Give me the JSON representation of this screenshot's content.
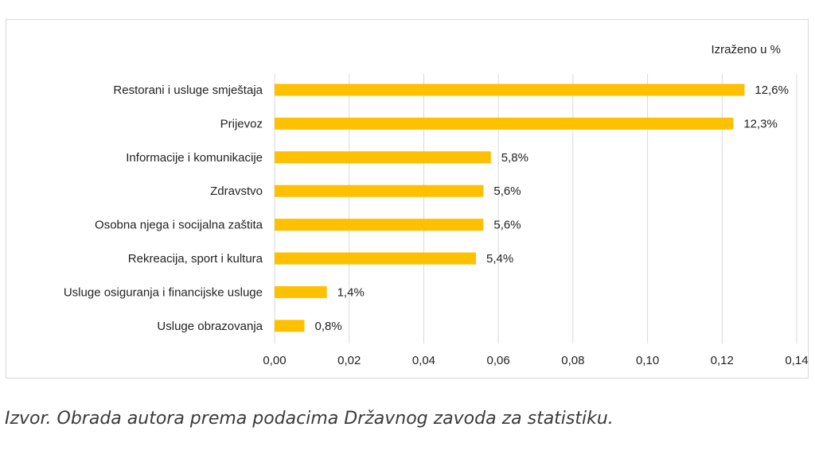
{
  "chart_data": {
    "type": "bar",
    "orientation": "horizontal",
    "unit_note": "Izraženo u %",
    "categories": [
      "Restorani i usluge smještaja",
      "Prijevoz",
      "Informacije i komunikacije",
      "Zdravstvo",
      "Osobna njega i socijalna zaštita",
      "Rekreacija, sport i kultura",
      "Usluge osiguranja i financijske usluge",
      "Usluge obrazovanja"
    ],
    "values": [
      0.126,
      0.123,
      0.058,
      0.056,
      0.056,
      0.054,
      0.014,
      0.008
    ],
    "value_labels": [
      "12,6%",
      "12,3%",
      "5,8%",
      "5,6%",
      "5,6%",
      "5,4%",
      "1,4%",
      "0,8%"
    ],
    "xlim": [
      0,
      0.14
    ],
    "x_ticks": [
      "0,00",
      "0,02",
      "0,04",
      "0,06",
      "0,08",
      "0,10",
      "0,12",
      "0,14"
    ],
    "grid": "vertical",
    "bar_color": "#FFC000",
    "grid_color": "#d9d9d9"
  },
  "caption": "Izvor. Obrada autora prema podacima Državnog zavoda za statistiku."
}
